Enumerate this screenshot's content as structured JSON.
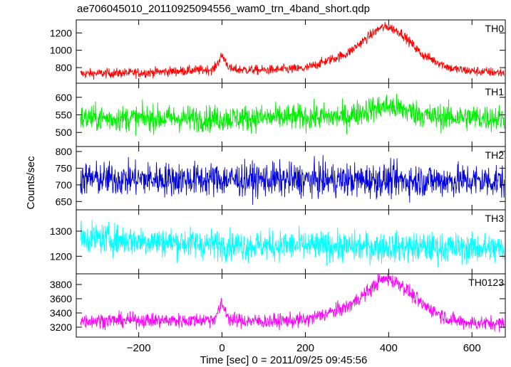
{
  "chart_data": {
    "type": "line",
    "title": "ae706045010_20110925094556_wam0_trn_4band_short.qdp",
    "xlabel": "Time [sec] 0 = 2011/09/25 09:45:56",
    "ylabel": "Counts/sec",
    "xlim": [
      -350,
      680
    ],
    "xticks": [
      -200,
      0,
      200,
      400,
      600
    ],
    "panels": [
      {
        "name": "TH0",
        "color": "#ff0000",
        "ylim": [
          620,
          1350
        ],
        "yticks": [
          800,
          1000,
          1200
        ],
        "trend": {
          "x": [
            -340,
            -200,
            -100,
            -20,
            0,
            20,
            100,
            200,
            300,
            350,
            380,
            400,
            430,
            480,
            550,
            600,
            680
          ],
          "y": [
            730,
            740,
            760,
            780,
            940,
            780,
            770,
            790,
            960,
            1150,
            1260,
            1270,
            1200,
            950,
            790,
            760,
            740
          ]
        },
        "noise": 30
      },
      {
        "name": "TH1",
        "color": "#00ee00",
        "ylim": [
          460,
          640
        ],
        "yticks": [
          500,
          550,
          600
        ],
        "trend": {
          "x": [
            -340,
            0,
            300,
            350,
            400,
            450,
            500,
            680
          ],
          "y": [
            540,
            540,
            545,
            565,
            575,
            560,
            545,
            540
          ]
        },
        "noise": 20
      },
      {
        "name": "TH2",
        "color": "#0000dd",
        "ylim": [
          625,
          815
        ],
        "yticks": [
          650,
          700,
          750,
          800
        ],
        "trend": {
          "x": [
            -340,
            680
          ],
          "y": [
            718,
            712
          ]
        },
        "noise": 27
      },
      {
        "name": "TH3",
        "color": "#00ffff",
        "ylim": [
          1130,
          1385
        ],
        "yticks": [
          1200,
          1300
        ],
        "trend": {
          "x": [
            -340,
            0,
            680
          ],
          "y": [
            1275,
            1245,
            1230
          ]
        },
        "noise": 32
      },
      {
        "name": "TH0123",
        "color": "#ff00ff",
        "ylim": [
          3060,
          3950
        ],
        "yticks": [
          3200,
          3400,
          3600,
          3800
        ],
        "trend": {
          "x": [
            -340,
            -200,
            -100,
            -20,
            0,
            20,
            100,
            200,
            300,
            350,
            380,
            400,
            430,
            480,
            550,
            600,
            680
          ],
          "y": [
            3290,
            3300,
            3290,
            3310,
            3520,
            3300,
            3280,
            3300,
            3480,
            3700,
            3860,
            3880,
            3800,
            3520,
            3300,
            3260,
            3250
          ]
        },
        "noise": 55
      }
    ]
  }
}
